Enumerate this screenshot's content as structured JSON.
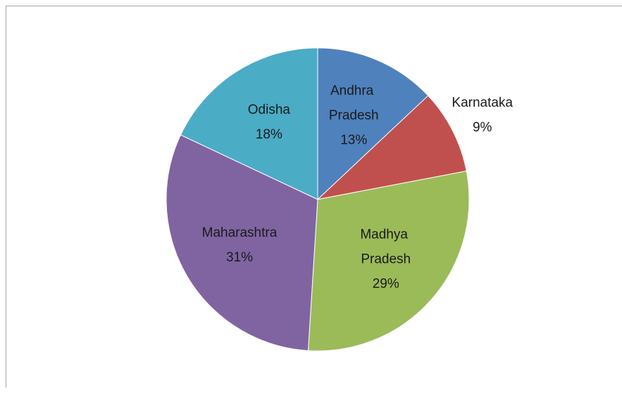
{
  "chart_data": {
    "type": "pie",
    "categories": [
      "Andhra Pradesh",
      "Karnataka",
      "Madhya Pradesh",
      "Maharashtra",
      "Odisha"
    ],
    "values": [
      13,
      9,
      29,
      31,
      18
    ],
    "value_labels": [
      "13%",
      "9%",
      "29%",
      "31%",
      "18%"
    ],
    "colors": [
      "#4f81bd",
      "#c0504d",
      "#9bbb59",
      "#8064a2",
      "#4bacc6"
    ]
  }
}
